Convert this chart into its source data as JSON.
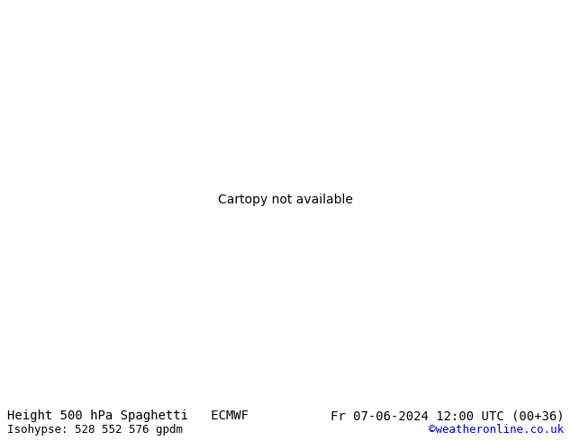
{
  "title_left": "Height 500 hPa Spaghetti   ECMWF",
  "title_right": "Fr 07-06-2024 12:00 UTC (00+36)",
  "subtitle_left": "Isohypse: 528 552 576 gpdm",
  "subtitle_right": "©weatheronline.co.uk",
  "subtitle_right_color": "#0000cc",
  "background_color": "#e8e8e8",
  "land_color": "#c8e8b0",
  "ocean_color": "#e8e8e8",
  "coast_color": "#888888",
  "border_color": "#aaaaaa",
  "bottom_bar_color": "#d0d0d0",
  "text_color": "#000000",
  "font_size_title": 10,
  "font_size_subtitle": 9,
  "fig_width": 6.34,
  "fig_height": 4.9,
  "dpi": 100,
  "spaghetti_colors": [
    "#ff0000",
    "#0000ff",
    "#00aa00",
    "#ff00ff",
    "#ff8800",
    "#00aaaa",
    "#8800ff",
    "#ddcc00",
    "#00cc66",
    "#ff4488",
    "#4488ff",
    "#88cc00",
    "#ff8844",
    "#44ddcc",
    "#cc44ff",
    "#ff4400",
    "#0044ff",
    "#44ff00",
    "#ff44aa",
    "#888888",
    "#555555",
    "#333333",
    "#666666",
    "#999999",
    "#444444"
  ],
  "label_color_552": "#ff00ff",
  "label_color_528": "#ff4400",
  "label_color_576": "#00aaaa"
}
